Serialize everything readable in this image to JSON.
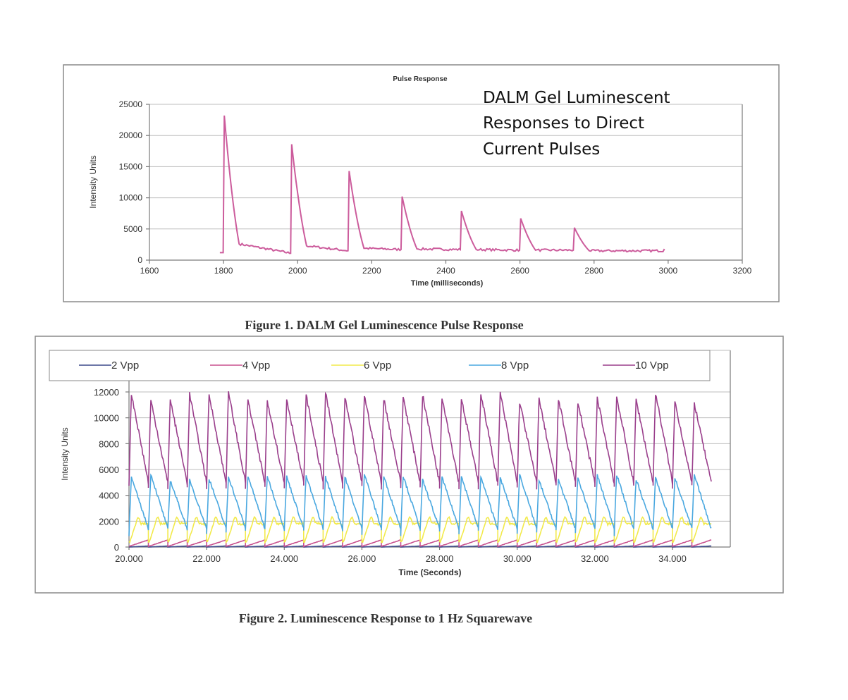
{
  "annotation": {
    "lines": [
      "DALM Gel Luminescent",
      "Responses to Direct",
      "Current Pulses"
    ]
  },
  "captions": {
    "figure1": "Figure 1.  DALM Gel Luminescence Pulse Response",
    "figure2": "Figure 2.  Luminescence Response to 1 Hz Squarewave"
  },
  "colors": {
    "pulse": "#cc5c9c",
    "v2": "#3d4a8c",
    "v4": "#c8508e",
    "v6": "#f2ea4a",
    "v8": "#4aa8e0",
    "v10": "#9a3f8c"
  },
  "chart_data": [
    {
      "type": "line",
      "title": "Pulse Response",
      "xlabel": "Time (milliseconds)",
      "ylabel": "Intensity Units",
      "xlim": [
        1600,
        3200
      ],
      "ylim": [
        0,
        25000
      ],
      "xticks": [
        "1600",
        "1800",
        "2000",
        "2200",
        "2400",
        "2600",
        "2800",
        "3000",
        "3200"
      ],
      "yticks": [
        "0",
        "5000",
        "10000",
        "15000",
        "20000",
        "25000"
      ],
      "grid": true,
      "legend": "none",
      "series": [
        {
          "name": "Pulse Response",
          "pulses": [
            {
              "start": 1800,
              "peak": 23200,
              "baseline_before": 1200,
              "baseline_after": 2600
            },
            {
              "start": 1982,
              "peak": 18600,
              "baseline_before": 1100,
              "baseline_after": 2300
            },
            {
              "start": 2137,
              "peak": 14300,
              "baseline_before": 1500,
              "baseline_after": 1900
            },
            {
              "start": 2280,
              "peak": 10200,
              "baseline_before": 1700,
              "baseline_after": 1800
            },
            {
              "start": 2440,
              "peak": 7900,
              "baseline_before": 1700,
              "baseline_after": 1700
            },
            {
              "start": 2600,
              "peak": 6700,
              "baseline_before": 1600,
              "baseline_after": 1600
            },
            {
              "start": 2745,
              "peak": 5200,
              "baseline_before": 1600,
              "baseline_after": 1500
            }
          ],
          "x_start": 1790,
          "x_end": 2990,
          "end_value": 1500
        }
      ]
    },
    {
      "type": "line",
      "title": "",
      "xlabel": "Time (Seconds)",
      "ylabel": "Intensity Units",
      "xlim": [
        20.0,
        35.0
      ],
      "ylim": [
        0,
        12000
      ],
      "xticks": [
        "20.000",
        "22.000",
        "24.000",
        "26.000",
        "28.000",
        "30.000",
        "32.000",
        "34.000"
      ],
      "yticks": [
        "0",
        "2000",
        "4000",
        "6000",
        "8000",
        "10000",
        "12000"
      ],
      "grid": true,
      "legend": "top",
      "period_seconds": 0.5,
      "series": [
        {
          "name": "2 Vpp",
          "colorKey": "v2",
          "low": 0,
          "high": 80
        },
        {
          "name": "4 Vpp",
          "colorKey": "v4",
          "low": 50,
          "high": 550
        },
        {
          "name": "6 Vpp",
          "colorKey": "v6",
          "low": 400,
          "high": 2300
        },
        {
          "name": "8 Vpp",
          "colorKey": "v8",
          "low": 1200,
          "high": 5700
        },
        {
          "name": "10 Vpp",
          "colorKey": "v10",
          "low": 4600,
          "high": 12000
        }
      ]
    }
  ]
}
